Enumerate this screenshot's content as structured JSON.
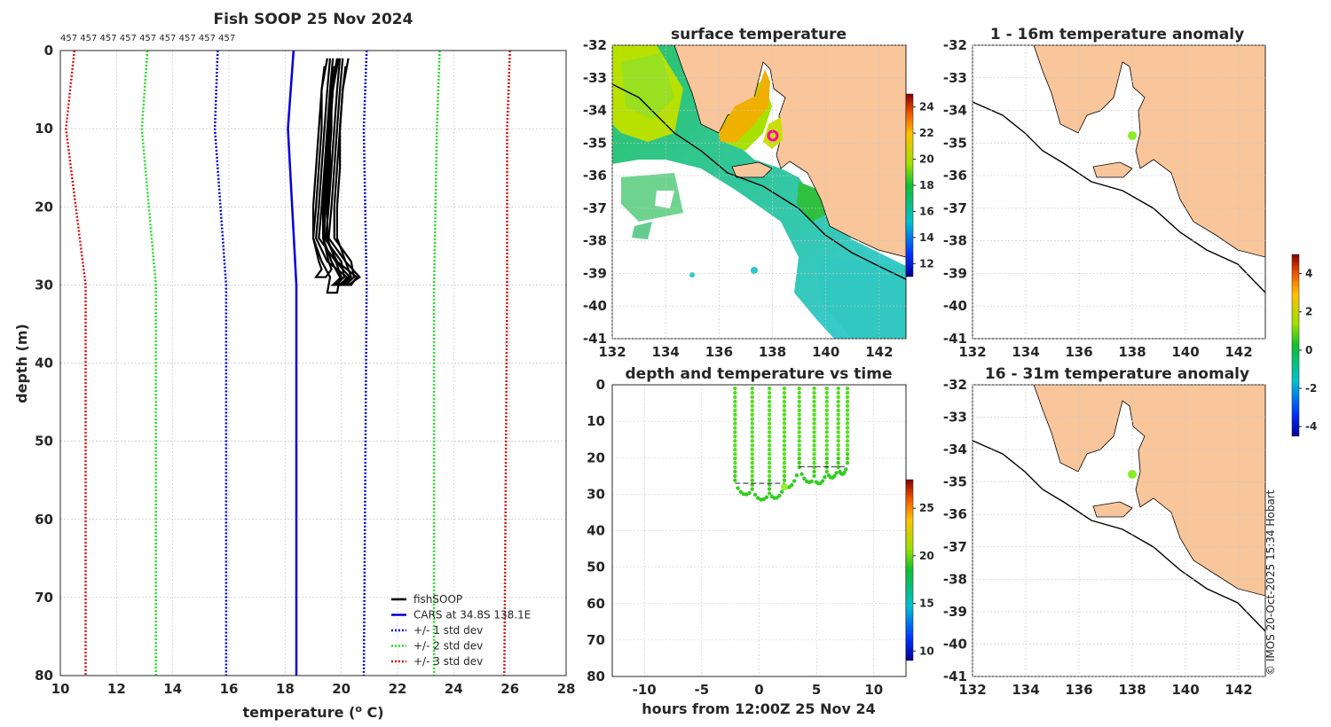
{
  "colors": {
    "land": "#f9c59a",
    "profile": "#000000",
    "cars": "#0000dd",
    "std1": "#0000dd",
    "std2": "#22dd22",
    "std3": "#dd1111",
    "grid": "#c8c8c8",
    "point": "#55dd22"
  },
  "chart_data": [
    {
      "id": "profile",
      "type": "line",
      "title": "Fish SOOP 25 Nov 2024",
      "xlabel": "temperature (° C)",
      "xlabel_pre": "temperature (",
      "xlabel_sup": "o",
      "xlabel_post": " C)",
      "ylabel": "depth (m)",
      "xlim": [
        10,
        28
      ],
      "ylim": [
        80,
        0
      ],
      "xticks": [
        "10",
        "12",
        "14",
        "16",
        "18",
        "20",
        "22",
        "24",
        "26",
        "28"
      ],
      "yticks": [
        "0",
        "10",
        "20",
        "30",
        "40",
        "50",
        "60",
        "70",
        "80"
      ],
      "grid": true,
      "counts_label": "457 457 457 457 457 457 457 457 457",
      "legend_position": "bottom-right",
      "legend": [
        {
          "label": "fishSOOP",
          "style": "solid",
          "color_key": "profile"
        },
        {
          "label": "CARS at 34.8S 138.1E",
          "style": "solid",
          "color_key": "cars"
        },
        {
          "label": "+/- 1 std dev",
          "style": "dotted",
          "color_key": "std1"
        },
        {
          "label": "+/- 2 std dev",
          "style": "dotted",
          "color_key": "std2"
        },
        {
          "label": "+/- 3 std dev",
          "style": "dotted",
          "color_key": "std3"
        }
      ],
      "series": [
        {
          "name": "CARS at 34.8S 138.1E",
          "depth": [
            0,
            10,
            30,
            80
          ],
          "temp": [
            18.3,
            18.1,
            18.4,
            18.4
          ]
        },
        {
          "name": "-1 std",
          "depth": [
            0,
            10,
            30,
            80
          ],
          "temp": [
            15.6,
            15.5,
            15.9,
            15.9
          ]
        },
        {
          "name": "+1 std",
          "depth": [
            0,
            10,
            30,
            80
          ],
          "temp": [
            20.9,
            20.8,
            20.9,
            20.8
          ]
        },
        {
          "name": "-2 std",
          "depth": [
            0,
            10,
            30,
            80
          ],
          "temp": [
            13.1,
            12.9,
            13.4,
            13.4
          ]
        },
        {
          "name": "+2 std",
          "depth": [
            0,
            10,
            30,
            80
          ],
          "temp": [
            23.5,
            23.4,
            23.3,
            23.3
          ]
        },
        {
          "name": "-3 std",
          "depth": [
            0,
            10,
            30,
            80
          ],
          "temp": [
            10.5,
            10.2,
            10.9,
            10.9
          ]
        },
        {
          "name": "+3 std",
          "depth": [
            0,
            10,
            30,
            80
          ],
          "temp": [
            26.0,
            25.9,
            25.9,
            25.8
          ]
        }
      ],
      "casts": [
        {
          "depth": [
            1,
            5,
            10,
            15,
            20,
            24,
            27,
            29,
            31
          ],
          "temp": [
            19.5,
            19.3,
            19.2,
            19.1,
            19.0,
            19.0,
            19.3,
            19.6,
            19.5
          ]
        },
        {
          "depth": [
            1,
            5,
            10,
            15,
            20,
            24,
            27,
            29,
            30
          ],
          "temp": [
            19.6,
            19.5,
            19.4,
            19.3,
            19.2,
            19.1,
            19.5,
            20.2,
            20.0
          ]
        },
        {
          "depth": [
            1,
            5,
            10,
            15,
            20,
            24,
            27,
            29,
            30
          ],
          "temp": [
            19.7,
            19.6,
            19.5,
            19.4,
            19.3,
            19.2,
            19.8,
            20.3,
            19.9
          ]
        },
        {
          "depth": [
            2,
            5,
            10,
            15,
            20,
            24,
            27,
            29,
            30
          ],
          "temp": [
            19.8,
            19.7,
            19.6,
            19.5,
            19.4,
            19.4,
            20.0,
            20.1,
            19.8
          ]
        },
        {
          "depth": [
            2,
            5,
            10,
            15,
            20,
            24,
            27,
            28,
            29
          ],
          "temp": [
            19.4,
            19.3,
            19.3,
            19.2,
            19.1,
            19.0,
            19.2,
            19.3,
            19.1
          ]
        },
        {
          "depth": [
            1,
            5,
            10,
            15,
            20,
            24,
            27,
            29,
            30
          ],
          "temp": [
            19.9,
            19.7,
            19.6,
            19.6,
            19.5,
            19.5,
            19.8,
            20.0,
            19.7
          ]
        }
      ]
    },
    {
      "id": "surface",
      "type": "heatmap",
      "title": "surface temperature",
      "xticks": [
        "132",
        "134",
        "136",
        "138",
        "140",
        "142"
      ],
      "yticks": [
        "-32",
        "-33",
        "-34",
        "-35",
        "-36",
        "-37",
        "-38",
        "-39",
        "-40",
        "-41"
      ],
      "xlim": [
        132,
        143
      ],
      "ylim": [
        -41,
        -32
      ],
      "colorbar_ticks": [
        "12",
        "14",
        "16",
        "18",
        "20",
        "22",
        "24"
      ],
      "colorbar_range": [
        11,
        25
      ],
      "marker": {
        "lon": 138.1,
        "lat": -34.8
      }
    },
    {
      "id": "timeseries",
      "type": "scatter",
      "title": "depth and temperature vs time",
      "xlabel": "hours from 12:00Z 25 Nov 24",
      "xticks": [
        "-10",
        "-5",
        "0",
        "5",
        "10"
      ],
      "yticks": [
        "0",
        "10",
        "20",
        "30",
        "40",
        "50",
        "60",
        "70",
        "80"
      ],
      "xlim": [
        -12.8,
        12.8
      ],
      "ylim": [
        80,
        0
      ],
      "colorbar_ticks": [
        "10",
        "15",
        "20",
        "25"
      ],
      "colorbar_range": [
        9,
        28
      ],
      "casts_hours": [
        -2.1,
        -0.6,
        0.9,
        2.2,
        3.5,
        4.8,
        5.9,
        6.9,
        7.7
      ],
      "bottom_depths": [
        27,
        29,
        30,
        28,
        23,
        26,
        24,
        23,
        22
      ]
    },
    {
      "id": "anom_shallow",
      "type": "heatmap",
      "title": "1 - 16m temperature anomaly",
      "xticks": [
        "132",
        "134",
        "136",
        "138",
        "140",
        "142"
      ],
      "yticks": [
        "-32",
        "-33",
        "-34",
        "-35",
        "-36",
        "-37",
        "-38",
        "-39",
        "-40",
        "-41"
      ],
      "xlim": [
        132,
        143
      ],
      "ylim": [
        -41,
        -32
      ],
      "marker": {
        "lon": 138.1,
        "lat": -34.8
      }
    },
    {
      "id": "anom_deep",
      "type": "heatmap",
      "title": "16 - 31m temperature anomaly",
      "xticks": [
        "132",
        "134",
        "136",
        "138",
        "140",
        "142"
      ],
      "yticks": [
        "-32",
        "-33",
        "-34",
        "-35",
        "-36",
        "-37",
        "-38",
        "-39",
        "-40",
        "-41"
      ],
      "xlim": [
        132,
        143
      ],
      "ylim": [
        -41,
        -32
      ],
      "marker": {
        "lon": 138.1,
        "lat": -34.8
      }
    }
  ],
  "anomaly_colorbar": {
    "ticks": [
      "4",
      "2",
      "0",
      "-2",
      "-4"
    ],
    "range": [
      -4.5,
      5
    ]
  },
  "credit": "© IMOS 20-Oct-2025 15:34 Hobart"
}
